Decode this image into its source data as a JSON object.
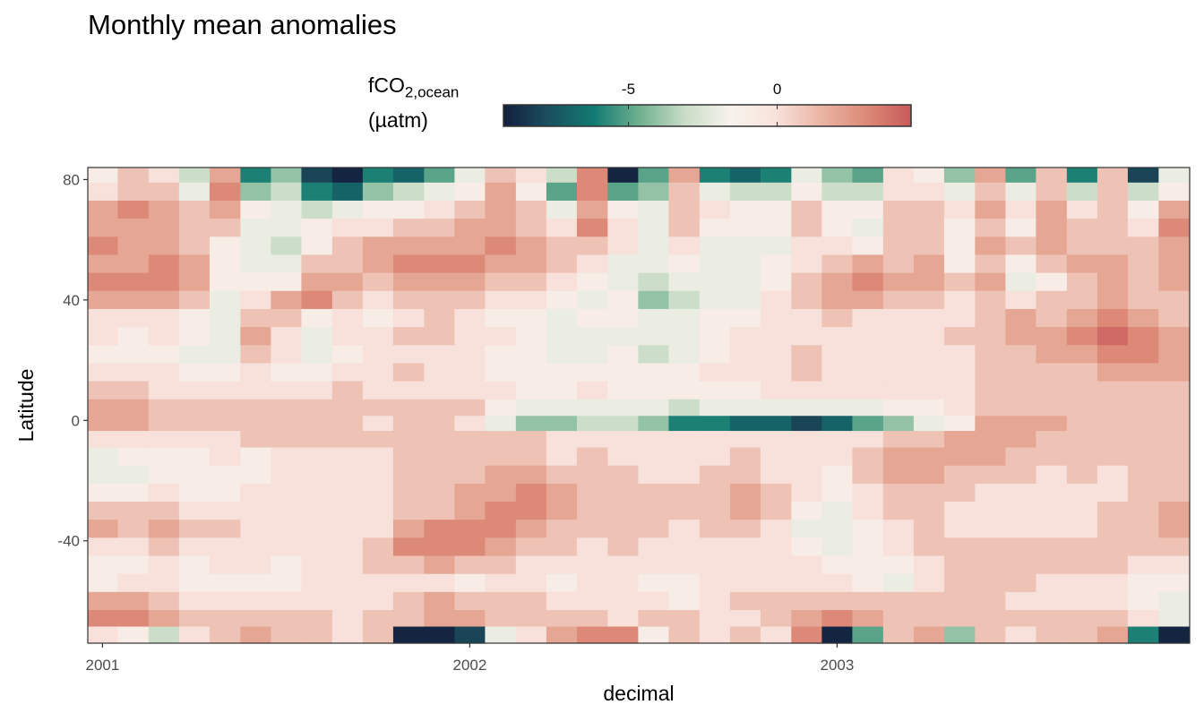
{
  "chart_data": {
    "type": "heatmap",
    "title": "Monthly mean anomalies",
    "xlabel": "decimal",
    "ylabel": "Latitude",
    "xlim": [
      2000.96,
      2003.96
    ],
    "ylim": [
      -74,
      84
    ],
    "x_ticks": [
      2001,
      2002,
      2003
    ],
    "x_tick_labels": [
      "2001",
      "2002",
      "2003"
    ],
    "y_ticks": [
      80,
      40,
      0,
      -40
    ],
    "y_tick_labels": [
      "80",
      "40",
      "0",
      "-40"
    ],
    "grid": false,
    "legend": {
      "position": "top",
      "title_main": "fCO",
      "title_sub": "2,ocean",
      "title_unit": "(µatm)",
      "range": [
        -9.2,
        4.5
      ],
      "ticks": [
        -5,
        0
      ],
      "tick_labels": [
        "-5",
        "0"
      ],
      "colors": [
        "#131f3d",
        "#1a4f5e",
        "#127b72",
        "#6fb08f",
        "#c9dcc7",
        "#f7f2ec",
        "#f8e3dc",
        "#eab5a4",
        "#dd8a78",
        "#c85a5a"
      ]
    },
    "months_x": [
      2001.0,
      2001.083,
      2001.167,
      2001.25,
      2001.333,
      2001.417,
      2001.5,
      2001.583,
      2001.667,
      2001.75,
      2001.833,
      2001.917,
      2002.0,
      2002.083,
      2002.167,
      2002.25,
      2002.333,
      2002.417,
      2002.5,
      2002.583,
      2002.667,
      2002.75,
      2002.833,
      2002.917,
      2003.0,
      2003.083,
      2003.167,
      2003.25,
      2003.333,
      2003.417,
      2003.5,
      2003.583,
      2003.667,
      2003.75,
      2003.833,
      2003.917
    ],
    "lat_bands": [
      82,
      76,
      70,
      64,
      58,
      52,
      46,
      40,
      34,
      28,
      22,
      16,
      10,
      4,
      -1,
      -6,
      -12,
      -18,
      -24,
      -30,
      -36,
      -42,
      -48,
      -54,
      -60,
      -66,
      -71
    ],
    "anomaly_rows": [
      [
        -1,
        1,
        0,
        -3,
        2,
        -6,
        -4,
        -8,
        -9,
        -6,
        -7,
        -5,
        -2,
        1,
        0,
        -3,
        3,
        -9,
        -5,
        2,
        -6,
        -7,
        -6,
        -2,
        -4,
        -5,
        0,
        -1,
        -4,
        2,
        -5,
        1,
        -6,
        1,
        -8,
        -2
      ],
      [
        0,
        1,
        1,
        -2,
        3,
        -4,
        -3,
        -6,
        -7,
        -4,
        -3,
        -2,
        -1,
        2,
        -1,
        -5,
        3,
        -5,
        -4,
        1,
        -2,
        -3,
        -3,
        -1,
        -3,
        -3,
        0,
        0,
        -2,
        1,
        -2,
        1,
        -3,
        1,
        -3,
        -1
      ],
      [
        2,
        3,
        2,
        1,
        2,
        -1,
        -2,
        -3,
        -2,
        -1,
        -1,
        0,
        1,
        2,
        1,
        -2,
        2,
        -1,
        -2,
        1,
        0,
        -1,
        -1,
        1,
        -1,
        -1,
        1,
        1,
        0,
        2,
        0,
        2,
        0,
        1,
        -1,
        2
      ],
      [
        2,
        2,
        2,
        1,
        1,
        -2,
        -2,
        -1,
        0,
        0,
        1,
        1,
        2,
        2,
        1,
        0,
        3,
        0,
        -2,
        1,
        -1,
        -1,
        -1,
        1,
        -1,
        -2,
        1,
        1,
        -1,
        1,
        -1,
        2,
        1,
        1,
        0,
        3
      ],
      [
        3,
        2,
        2,
        1,
        -1,
        -2,
        -3,
        -1,
        1,
        2,
        2,
        2,
        2,
        3,
        2,
        1,
        1,
        0,
        -2,
        0,
        -2,
        -2,
        -2,
        0,
        0,
        -1,
        1,
        1,
        -1,
        2,
        1,
        2,
        1,
        1,
        1,
        2
      ],
      [
        2,
        2,
        3,
        2,
        -1,
        -2,
        -2,
        1,
        1,
        2,
        3,
        3,
        3,
        2,
        2,
        1,
        0,
        -2,
        -2,
        -1,
        -2,
        -2,
        -1,
        0,
        1,
        2,
        1,
        2,
        -1,
        1,
        -1,
        1,
        2,
        2,
        1,
        2
      ],
      [
        3,
        3,
        3,
        2,
        -1,
        -1,
        -1,
        2,
        2,
        1,
        2,
        2,
        2,
        1,
        1,
        0,
        -1,
        -2,
        -3,
        -2,
        -2,
        -2,
        -1,
        1,
        2,
        3,
        2,
        2,
        1,
        2,
        -2,
        -1,
        1,
        2,
        1,
        2
      ],
      [
        2,
        2,
        2,
        1,
        -2,
        0,
        2,
        3,
        1,
        0,
        1,
        1,
        1,
        0,
        0,
        -1,
        -2,
        -1,
        -4,
        -3,
        -2,
        -2,
        0,
        1,
        2,
        2,
        1,
        1,
        0,
        1,
        0,
        1,
        1,
        2,
        1,
        1
      ],
      [
        0,
        0,
        0,
        -1,
        -2,
        1,
        1,
        -1,
        0,
        -1,
        0,
        1,
        0,
        -1,
        -1,
        -2,
        -1,
        -1,
        -2,
        -2,
        -1,
        -1,
        0,
        0,
        1,
        0,
        0,
        0,
        0,
        1,
        2,
        1,
        2,
        3,
        2,
        1
      ],
      [
        0,
        -1,
        0,
        -1,
        -2,
        2,
        0,
        -2,
        0,
        0,
        1,
        1,
        0,
        0,
        -1,
        -2,
        -2,
        -2,
        -2,
        -2,
        -1,
        0,
        0,
        0,
        0,
        0,
        0,
        0,
        1,
        1,
        2,
        2,
        3,
        4,
        3,
        2
      ],
      [
        -1,
        -1,
        -1,
        -2,
        -2,
        1,
        0,
        -2,
        -1,
        0,
        0,
        0,
        0,
        -1,
        -1,
        -2,
        -2,
        -1,
        -3,
        -2,
        -1,
        0,
        0,
        1,
        0,
        0,
        0,
        0,
        0,
        1,
        1,
        2,
        2,
        3,
        3,
        2
      ],
      [
        0,
        0,
        0,
        -1,
        -1,
        0,
        -1,
        -1,
        0,
        0,
        1,
        0,
        0,
        -1,
        -1,
        -1,
        -1,
        -1,
        -1,
        -1,
        0,
        0,
        0,
        1,
        0,
        0,
        0,
        0,
        0,
        1,
        1,
        1,
        1,
        2,
        2,
        2
      ],
      [
        1,
        1,
        0,
        0,
        0,
        0,
        0,
        0,
        1,
        0,
        0,
        0,
        0,
        0,
        -1,
        -1,
        0,
        -1,
        -1,
        -1,
        -1,
        -1,
        0,
        0,
        0,
        0,
        0,
        0,
        0,
        1,
        1,
        1,
        1,
        1,
        1,
        1
      ],
      [
        2,
        2,
        1,
        1,
        1,
        1,
        1,
        1,
        1,
        1,
        1,
        1,
        1,
        -1,
        -2,
        -2,
        -2,
        -2,
        -2,
        -3,
        -2,
        -2,
        -2,
        -2,
        -2,
        -2,
        -1,
        -1,
        0,
        1,
        1,
        1,
        1,
        1,
        1,
        1
      ],
      [
        2,
        2,
        1,
        1,
        1,
        1,
        1,
        1,
        1,
        0,
        1,
        1,
        0,
        -2,
        -4,
        -4,
        -3,
        -3,
        -4,
        -6,
        -6,
        -7,
        -7,
        -8,
        -7,
        -5,
        -4,
        -2,
        -1,
        2,
        2,
        2,
        1,
        1,
        1,
        1
      ],
      [
        0,
        0,
        0,
        0,
        0,
        1,
        1,
        1,
        1,
        1,
        1,
        1,
        1,
        1,
        1,
        0,
        0,
        0,
        0,
        0,
        0,
        0,
        0,
        0,
        0,
        0,
        1,
        1,
        2,
        2,
        2,
        1,
        1,
        1,
        1,
        1
      ],
      [
        -2,
        -1,
        -1,
        -1,
        0,
        -1,
        0,
        0,
        0,
        0,
        1,
        1,
        1,
        1,
        1,
        0,
        1,
        0,
        0,
        0,
        0,
        1,
        0,
        0,
        0,
        1,
        2,
        2,
        2,
        2,
        1,
        1,
        1,
        1,
        1,
        1
      ],
      [
        -2,
        -2,
        -1,
        -1,
        -1,
        -1,
        0,
        0,
        0,
        0,
        1,
        1,
        1,
        2,
        2,
        1,
        1,
        1,
        0,
        0,
        1,
        1,
        0,
        0,
        -1,
        1,
        2,
        2,
        1,
        1,
        1,
        0,
        1,
        0,
        1,
        1
      ],
      [
        -1,
        -1,
        0,
        -1,
        -1,
        0,
        0,
        0,
        0,
        0,
        1,
        1,
        2,
        2,
        3,
        2,
        1,
        1,
        1,
        1,
        1,
        2,
        1,
        0,
        -1,
        0,
        1,
        1,
        1,
        0,
        0,
        0,
        0,
        0,
        1,
        1
      ],
      [
        1,
        1,
        1,
        0,
        0,
        0,
        0,
        0,
        0,
        0,
        1,
        1,
        2,
        3,
        3,
        2,
        1,
        1,
        1,
        1,
        1,
        2,
        1,
        -1,
        -2,
        0,
        1,
        1,
        0,
        0,
        0,
        0,
        0,
        1,
        1,
        2
      ],
      [
        2,
        1,
        2,
        1,
        1,
        0,
        0,
        0,
        0,
        0,
        2,
        3,
        3,
        3,
        2,
        1,
        1,
        1,
        1,
        0,
        1,
        1,
        0,
        -2,
        -2,
        -1,
        0,
        1,
        0,
        0,
        0,
        0,
        0,
        1,
        1,
        2
      ],
      [
        0,
        0,
        1,
        0,
        0,
        0,
        0,
        0,
        0,
        1,
        3,
        3,
        3,
        2,
        1,
        1,
        0,
        1,
        0,
        0,
        0,
        0,
        0,
        -1,
        -2,
        -1,
        0,
        1,
        1,
        1,
        1,
        1,
        1,
        1,
        1,
        1
      ],
      [
        -1,
        -1,
        0,
        -1,
        0,
        0,
        -1,
        0,
        0,
        1,
        1,
        2,
        1,
        1,
        0,
        0,
        0,
        0,
        0,
        0,
        0,
        0,
        0,
        0,
        -1,
        -1,
        -1,
        0,
        1,
        1,
        1,
        1,
        1,
        1,
        0,
        0
      ],
      [
        -1,
        0,
        0,
        -1,
        -1,
        -1,
        -1,
        0,
        0,
        0,
        0,
        0,
        -1,
        0,
        0,
        -1,
        0,
        0,
        -1,
        -1,
        0,
        0,
        0,
        0,
        0,
        -1,
        -2,
        0,
        1,
        1,
        1,
        0,
        0,
        0,
        -1,
        -1
      ],
      [
        2,
        2,
        1,
        0,
        0,
        0,
        0,
        0,
        0,
        0,
        1,
        2,
        1,
        1,
        1,
        0,
        0,
        0,
        0,
        -1,
        0,
        1,
        1,
        1,
        1,
        1,
        1,
        1,
        1,
        1,
        0,
        0,
        0,
        0,
        -1,
        -2
      ],
      [
        3,
        3,
        2,
        1,
        1,
        1,
        1,
        1,
        0,
        1,
        1,
        2,
        2,
        1,
        1,
        1,
        1,
        0,
        1,
        1,
        0,
        0,
        1,
        2,
        3,
        2,
        1,
        1,
        1,
        1,
        1,
        1,
        1,
        1,
        0,
        -2
      ],
      [
        0,
        -1,
        -3,
        0,
        1,
        2,
        1,
        1,
        0,
        1,
        -9,
        -9,
        -8,
        -2,
        0,
        2,
        3,
        3,
        -1,
        1,
        0,
        1,
        0,
        3,
        -9,
        -5,
        1,
        2,
        -4,
        1,
        0,
        1,
        1,
        2,
        -6,
        -9
      ]
    ]
  }
}
